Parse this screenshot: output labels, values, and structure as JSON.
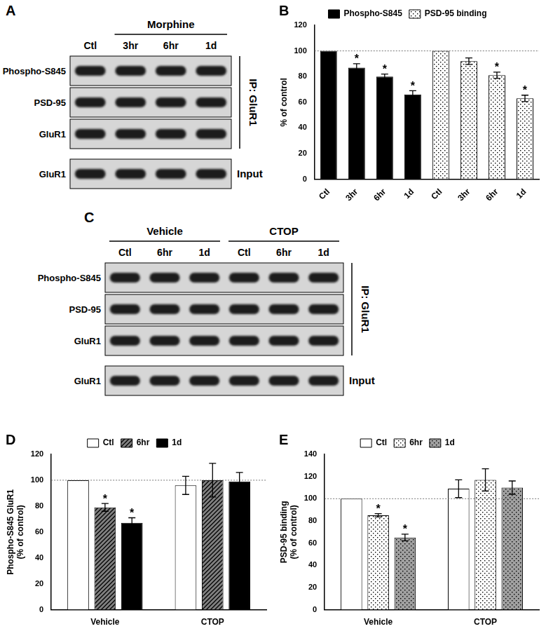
{
  "blots": [
    {
      "panel": "A",
      "lane_groups": [
        {
          "label": null,
          "lanes": [
            "Ctl"
          ]
        },
        {
          "label": "Morphine",
          "lanes": [
            "3hr",
            "6hr",
            "1d"
          ]
        }
      ],
      "ip_rows": [
        "Phospho-S845",
        "PSD-95",
        "GluR1"
      ],
      "ip_label": "IP: GluR1",
      "input_rows": [
        "GluR1"
      ],
      "input_label": "Input"
    },
    {
      "panel": "C",
      "lane_groups": [
        {
          "label": "Vehicle",
          "lanes": [
            "Ctl",
            "6hr",
            "1d"
          ]
        },
        {
          "label": "CTOP",
          "lanes": [
            "Ctl",
            "6hr",
            "1d"
          ]
        }
      ],
      "ip_rows": [
        "Phospho-S845",
        "PSD-95",
        "GluR1"
      ],
      "ip_label": "IP: GluR1",
      "input_rows": [
        "GluR1"
      ],
      "input_label": "Input"
    }
  ],
  "chart_data": [
    {
      "panel": "B",
      "type": "bar",
      "categories": [
        "Ctl",
        "3hr",
        "6hr",
        "1d",
        "Ctl",
        "3hr",
        "6hr",
        "1d"
      ],
      "y_label": "% of control",
      "ylim": [
        0,
        120
      ],
      "yticks": [
        0,
        20,
        40,
        60,
        80,
        100,
        120
      ],
      "grid": false,
      "legend": "top",
      "reference_line": 100,
      "significance_mark": "*",
      "series": [
        {
          "name": "Phospho-S845",
          "color": "#000000",
          "values": [
            100,
            87,
            80,
            66,
            null,
            null,
            null,
            null
          ],
          "errors": [
            0,
            3,
            2,
            3,
            null,
            null,
            null,
            null
          ],
          "significant": [
            false,
            true,
            true,
            true,
            false,
            false,
            false,
            false
          ]
        },
        {
          "name": "PSD-95 binding",
          "color": "#ffffff",
          "values": [
            null,
            null,
            null,
            null,
            100,
            92,
            81,
            63
          ],
          "errors": [
            null,
            null,
            null,
            null,
            0,
            2.5,
            2.5,
            2.5
          ],
          "significant": [
            false,
            false,
            false,
            false,
            false,
            false,
            true,
            true
          ]
        }
      ]
    },
    {
      "panel": "D",
      "type": "bar",
      "categories": [
        "Vehicle",
        "CTOP"
      ],
      "y_label": [
        "Phospho-S845 GluR1",
        "(% of control)"
      ],
      "ylim": [
        0,
        120
      ],
      "yticks": [
        0,
        20,
        40,
        60,
        80,
        100,
        120
      ],
      "grid": false,
      "legend": "top",
      "reference_line": 100,
      "significance_mark": "*",
      "series": [
        {
          "name": "Ctl",
          "color": "#ffffff",
          "values": [
            100,
            96
          ],
          "errors": [
            0,
            7
          ],
          "significant": [
            false,
            false
          ]
        },
        {
          "name": "6hr",
          "color": "#808080",
          "values": [
            79,
            100
          ],
          "errors": [
            3,
            13
          ],
          "significant": [
            true,
            false
          ]
        },
        {
          "name": "1d",
          "color": "#000000",
          "values": [
            67,
            99
          ],
          "errors": [
            4,
            7
          ],
          "significant": [
            true,
            false
          ]
        }
      ]
    },
    {
      "panel": "E",
      "type": "bar",
      "categories": [
        "Vehicle",
        "CTOP"
      ],
      "y_label": [
        "PSD-95 binding",
        "(% of control)"
      ],
      "ylim": [
        0,
        140
      ],
      "yticks": [
        0,
        20,
        40,
        60,
        80,
        100,
        120,
        140
      ],
      "grid": false,
      "legend": "top",
      "reference_line": 100,
      "significance_mark": "*",
      "series": [
        {
          "name": "Ctl",
          "color": "#ffffff",
          "values": [
            100,
            109
          ],
          "errors": [
            0,
            8
          ],
          "significant": [
            false,
            false
          ]
        },
        {
          "name": "6hr",
          "color": "#ffffff",
          "values": [
            85,
            117
          ],
          "errors": [
            1.5,
            10
          ],
          "significant": [
            true,
            false
          ]
        },
        {
          "name": "1d",
          "color": "#a0a0a0",
          "values": [
            65,
            110
          ],
          "errors": [
            3,
            6
          ],
          "significant": [
            true,
            false
          ]
        }
      ]
    }
  ]
}
